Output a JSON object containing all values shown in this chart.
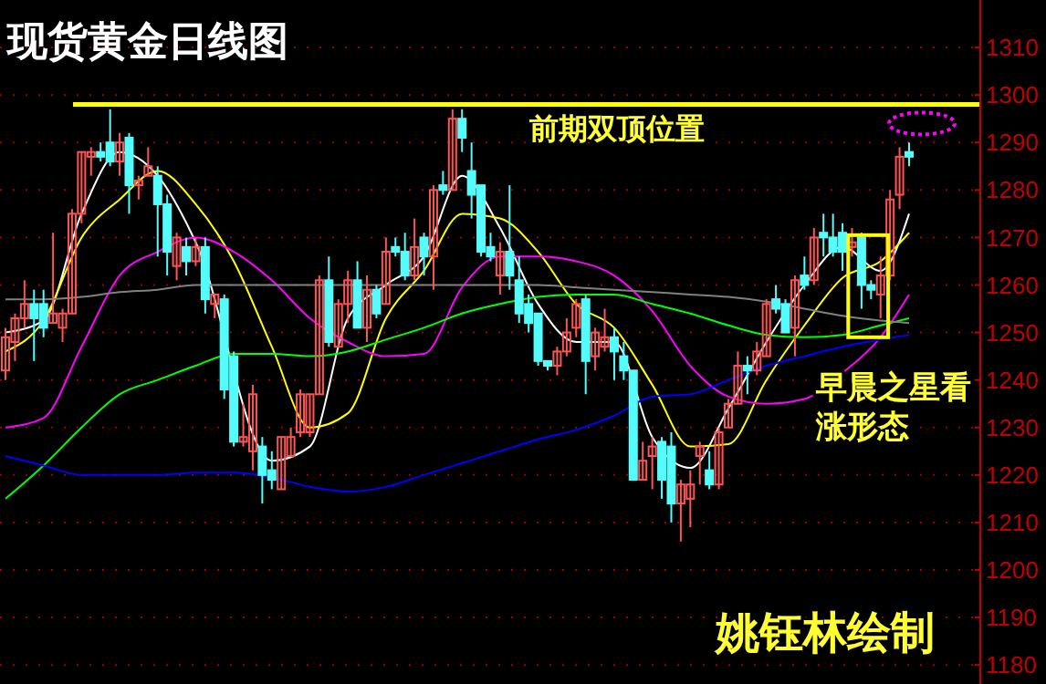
{
  "chart_data": {
    "type": "candlestick",
    "title": "现货黄金日线图",
    "annotations": [
      "前期双顶位置",
      "早晨之星看涨形态",
      "姚钰林绘制"
    ],
    "categories": [
      null,
      null,
      null,
      null,
      null,
      null,
      null,
      null,
      null,
      null,
      null,
      null,
      null,
      null,
      null,
      null,
      null,
      null,
      null,
      null,
      null,
      null,
      null,
      null,
      null,
      null,
      null,
      null,
      null,
      null,
      null,
      null,
      null,
      null,
      null,
      null,
      null,
      null,
      null,
      null,
      null,
      null,
      null,
      null,
      null,
      null,
      null,
      null,
      null,
      null,
      null,
      null,
      null,
      null,
      null,
      null,
      null,
      null,
      null,
      null,
      null,
      null,
      null,
      null,
      null,
      null,
      null,
      null,
      null,
      null,
      null,
      null,
      null,
      null,
      null,
      null,
      null,
      null,
      null,
      null,
      null,
      null,
      null,
      null,
      null,
      null,
      null,
      null,
      null,
      null,
      null,
      null,
      null,
      null,
      null,
      null
    ],
    "ohlc": [
      [
        1242,
        1251,
        1240,
        1249
      ],
      [
        1248,
        1254,
        1244,
        1253
      ],
      [
        1253,
        1261,
        1251,
        1256
      ],
      [
        1256,
        1259,
        1244,
        1253
      ],
      [
        1256,
        1259,
        1249,
        1251
      ],
      [
        1252,
        1271,
        1252,
        1254
      ],
      [
        1251,
        1255,
        1248,
        1254
      ],
      [
        1254,
        1276,
        1254,
        1275
      ],
      [
        1275,
        1288,
        1273,
        1288
      ],
      [
        1287,
        1289,
        1283,
        1288
      ],
      [
        1288,
        1290,
        1286,
        1287
      ],
      [
        1290,
        1297,
        1285,
        1286
      ],
      [
        1286,
        1292,
        1283,
        1290
      ],
      [
        1291,
        1292,
        1275,
        1281
      ],
      [
        1281,
        1283,
        1278,
        1282
      ],
      [
        1283,
        1289,
        1283,
        1285
      ],
      [
        1283,
        1285,
        1266,
        1277
      ],
      [
        1277,
        1279,
        1262,
        1267
      ],
      [
        1264,
        1271,
        1261,
        1270
      ],
      [
        1268,
        1270,
        1262,
        1265
      ],
      [
        1265,
        1270,
        1264,
        1268
      ],
      [
        1268,
        1270,
        1254,
        1257
      ],
      [
        1256,
        1258,
        1253,
        1258
      ],
      [
        1257,
        1258,
        1236,
        1238
      ],
      [
        1245,
        1246,
        1226,
        1227
      ],
      [
        1227,
        1235,
        1226,
        1228
      ],
      [
        1225,
        1239,
        1221,
        1237
      ],
      [
        1226,
        1228,
        1214,
        1220
      ],
      [
        1221,
        1225,
        1217,
        1219
      ],
      [
        1217,
        1228,
        1217,
        1228
      ],
      [
        1224,
        1230,
        1224,
        1228
      ],
      [
        1229,
        1238,
        1228,
        1237
      ],
      [
        1229,
        1237,
        1228,
        1237
      ],
      [
        1237,
        1262,
        1237,
        1261
      ],
      [
        1261,
        1266,
        1247,
        1248
      ],
      [
        1247,
        1257,
        1247,
        1256
      ],
      [
        1256,
        1263,
        1252,
        1261
      ],
      [
        1261,
        1265,
        1251,
        1251
      ],
      [
        1251,
        1262,
        1248,
        1259
      ],
      [
        1259,
        1260,
        1253,
        1254
      ],
      [
        1256,
        1270,
        1256,
        1267
      ],
      [
        1268,
        1270,
        1266,
        1267
      ],
      [
        1267,
        1271,
        1261,
        1262
      ],
      [
        1262,
        1274,
        1261,
        1268
      ],
      [
        1270,
        1271,
        1262,
        1266
      ],
      [
        1266,
        1281,
        1259,
        1280
      ],
      [
        1281,
        1284,
        1279,
        1280
      ],
      [
        1280,
        1297,
        1280,
        1295
      ],
      [
        1295,
        1297,
        1288,
        1291
      ],
      [
        1284,
        1290,
        1274,
        1279
      ],
      [
        1281,
        1281,
        1266,
        1267
      ],
      [
        1268,
        1271,
        1265,
        1266
      ],
      [
        1262,
        1269,
        1258,
        1267
      ],
      [
        1267,
        1281,
        1259,
        1262
      ],
      [
        1261,
        1266,
        1252,
        1254
      ],
      [
        1256,
        1258,
        1250,
        1252
      ],
      [
        1254,
        1254,
        1243,
        1244
      ],
      [
        1244,
        1244,
        1242,
        1243
      ],
      [
        1243,
        1247,
        1241,
        1246
      ],
      [
        1246,
        1253,
        1245,
        1250
      ],
      [
        1251,
        1257,
        1249,
        1256
      ],
      [
        1257,
        1258,
        1237,
        1244
      ],
      [
        1245,
        1251,
        1242,
        1250
      ],
      [
        1247,
        1255,
        1246,
        1249
      ],
      [
        1249,
        1251,
        1240,
        1246
      ],
      [
        1245,
        1248,
        1240,
        1242
      ],
      [
        1242,
        1242,
        1219,
        1219
      ],
      [
        1219,
        1227,
        1219,
        1223
      ],
      [
        1224,
        1228,
        1217,
        1226
      ],
      [
        1227,
        1228,
        1215,
        1219
      ],
      [
        1226,
        1229,
        1210,
        1214
      ],
      [
        1214,
        1219,
        1206,
        1218
      ],
      [
        1215,
        1221,
        1209,
        1218
      ],
      [
        1224,
        1227,
        1218,
        1226
      ],
      [
        1221,
        1225,
        1217,
        1218
      ],
      [
        1218,
        1230,
        1217,
        1229
      ],
      [
        1230,
        1236,
        1230,
        1235
      ],
      [
        1235,
        1246,
        1235,
        1243
      ],
      [
        1243,
        1245,
        1237,
        1242
      ],
      [
        1242,
        1248,
        1241,
        1246
      ],
      [
        1245,
        1257,
        1245,
        1256
      ],
      [
        1257,
        1260,
        1254,
        1255
      ],
      [
        1256,
        1257,
        1250,
        1250
      ],
      [
        1251,
        1262,
        1245,
        1261
      ],
      [
        1262,
        1266,
        1259,
        1260
      ],
      [
        1261,
        1272,
        1260,
        1270
      ],
      [
        1271,
        1275,
        1266,
        1270
      ],
      [
        1270,
        1275,
        1266,
        1267
      ],
      [
        1271,
        1273,
        1263,
        1267
      ],
      [
        1268,
        1272,
        1266,
        1269
      ],
      [
        1270,
        1271,
        1255,
        1260
      ],
      [
        1260,
        1261,
        1257,
        1259
      ],
      [
        1258,
        1266,
        1253,
        1262
      ],
      [
        1262,
        1280,
        1261,
        1278
      ],
      [
        1279,
        1289,
        1276,
        1287
      ],
      [
        1288,
        1290,
        1285,
        1287
      ]
    ],
    "series": [
      {
        "type": "line",
        "color": "#ffffff",
        "values": [
          1250,
          null,
          null,
          null,
          1252.5,
          null,
          null,
          null,
          1275,
          null,
          null,
          null,
          1288,
          null,
          null,
          null,
          1283,
          null,
          null,
          null,
          1269,
          null,
          null,
          null,
          null,
          null,
          null,
          null,
          1223,
          null,
          null,
          null,
          1226,
          null,
          null,
          null,
          1253,
          null,
          null,
          null,
          1260,
          null,
          null,
          null,
          1266,
          null,
          null,
          null,
          1283,
          null,
          null,
          null,
          1272,
          null,
          null,
          null,
          1256,
          null,
          null,
          null,
          1248,
          null,
          null,
          null,
          1248,
          null,
          null,
          null,
          1228,
          null,
          null,
          null,
          1221.5,
          null,
          null,
          null,
          1234,
          null,
          null,
          null,
          1248,
          null,
          null,
          null,
          1260,
          null,
          null,
          null,
          1268,
          null,
          null,
          null,
          1263,
          null,
          null,
          1275
        ]
      },
      {
        "type": "line",
        "color": "#ffff00",
        "values": [
          1246,
          null,
          null,
          null,
          1252.5,
          null,
          null,
          null,
          1270,
          null,
          null,
          null,
          1278,
          null,
          null,
          null,
          1284,
          null,
          null,
          null,
          1277,
          null,
          null,
          null,
          1265,
          null,
          null,
          null,
          1247,
          null,
          null,
          null,
          1230,
          null,
          null,
          null,
          1233,
          null,
          null,
          null,
          1253,
          null,
          null,
          null,
          1263,
          null,
          null,
          null,
          1275,
          null,
          null,
          null,
          1274,
          null,
          null,
          null,
          1267,
          null,
          null,
          null,
          1256,
          null,
          null,
          null,
          1251,
          null,
          null,
          null,
          1239,
          null,
          null,
          null,
          1226,
          null,
          null,
          null,
          1226.5,
          null,
          null,
          null,
          1240,
          null,
          null,
          null,
          1251.5,
          null,
          null,
          null,
          1261.5,
          null,
          null,
          null,
          1265,
          null,
          null,
          1271
        ]
      },
      {
        "type": "line",
        "color": "#ff00ff",
        "values": [
          1230,
          null,
          null,
          null,
          1232,
          null,
          null,
          null,
          1247,
          null,
          null,
          null,
          1262,
          null,
          null,
          null,
          1267,
          null,
          null,
          null,
          1270,
          null,
          null,
          null,
          1267,
          null,
          null,
          null,
          1261,
          null,
          null,
          null,
          1253,
          null,
          null,
          null,
          1248,
          null,
          null,
          null,
          1245,
          null,
          null,
          null,
          1245.5,
          null,
          null,
          null,
          1259.5,
          null,
          null,
          null,
          1266,
          null,
          null,
          null,
          1266,
          null,
          null,
          null,
          1265,
          null,
          null,
          null,
          1262,
          null,
          null,
          null,
          1254.5,
          null,
          null,
          null,
          1243,
          null,
          null,
          null,
          1236.5,
          null,
          null,
          null,
          1235,
          null,
          null,
          null,
          1236,
          null,
          null,
          null,
          1241.5,
          null,
          null,
          null,
          1249,
          null,
          null,
          1258
        ]
      },
      {
        "type": "line",
        "color": "#00ff00",
        "values": [
          1215,
          null,
          null,
          null,
          1222,
          null,
          null,
          null,
          1230,
          null,
          null,
          null,
          1237,
          null,
          null,
          null,
          1240,
          null,
          null,
          null,
          1243,
          null,
          null,
          null,
          1245.5,
          null,
          null,
          null,
          1245.5,
          null,
          null,
          null,
          1245,
          null,
          null,
          null,
          1246,
          null,
          null,
          null,
          1248.5,
          null,
          null,
          null,
          1251,
          null,
          null,
          null,
          1254,
          null,
          null,
          null,
          1256,
          null,
          null,
          null,
          1257.5,
          null,
          null,
          null,
          1258,
          null,
          null,
          null,
          1258,
          null,
          null,
          null,
          1256,
          null,
          null,
          null,
          1254,
          null,
          null,
          null,
          1251.5,
          null,
          null,
          null,
          1249.5,
          null,
          null,
          null,
          1249,
          null,
          null,
          null,
          1249.5,
          null,
          null,
          null,
          1251.5,
          null,
          null,
          1253
        ]
      },
      {
        "type": "line",
        "color": "#808080",
        "values": [
          1257,
          null,
          null,
          null,
          1257,
          null,
          null,
          null,
          1257.5,
          null,
          null,
          null,
          1258.5,
          null,
          null,
          null,
          1259,
          null,
          null,
          null,
          1260,
          null,
          null,
          null,
          1260,
          null,
          null,
          null,
          1260,
          null,
          null,
          null,
          1260,
          null,
          null,
          null,
          1260,
          null,
          null,
          null,
          1260,
          null,
          null,
          null,
          1260,
          null,
          null,
          null,
          1260,
          null,
          null,
          null,
          1260,
          null,
          null,
          null,
          1260,
          null,
          null,
          null,
          1259.5,
          null,
          null,
          null,
          1259,
          null,
          null,
          null,
          1258.5,
          null,
          null,
          null,
          1258,
          null,
          null,
          null,
          1257.5,
          null,
          null,
          null,
          1256.5,
          null,
          null,
          null,
          1255,
          null,
          null,
          null,
          1253.5,
          null,
          null,
          null,
          1252.5,
          null,
          null,
          1252
        ]
      },
      {
        "type": "line",
        "color": "#0000ff",
        "values": [
          1224,
          null,
          null,
          null,
          1222,
          null,
          null,
          null,
          1220,
          null,
          null,
          null,
          1220,
          null,
          null,
          null,
          1220,
          null,
          null,
          null,
          1220.5,
          null,
          null,
          null,
          1220.5,
          null,
          null,
          null,
          1219.5,
          null,
          null,
          null,
          1217.5,
          null,
          null,
          null,
          1216.5,
          null,
          null,
          null,
          1217.5,
          null,
          null,
          null,
          1220,
          null,
          null,
          null,
          1222.5,
          null,
          null,
          null,
          1225,
          null,
          null,
          null,
          1227.5,
          null,
          null,
          null,
          1229.5,
          null,
          null,
          null,
          1232.5,
          null,
          null,
          null,
          1236.5,
          null,
          null,
          null,
          1237,
          null,
          null,
          null,
          1240,
          null,
          null,
          null,
          1243,
          null,
          null,
          null,
          1245,
          null,
          null,
          null,
          1247,
          null,
          null,
          null,
          1248.5,
          null,
          null,
          1249.5
        ]
      }
    ],
    "ylim": [
      1176,
      1320
    ],
    "yticks": [
      1180,
      1190,
      1200,
      1210,
      1220,
      1230,
      1240,
      1250,
      1260,
      1270,
      1280,
      1290,
      1300,
      1310
    ],
    "grid": "y",
    "ref_lines": [
      {
        "axis": "y",
        "value": 1298,
        "color": "#ffff00"
      }
    ]
  }
}
